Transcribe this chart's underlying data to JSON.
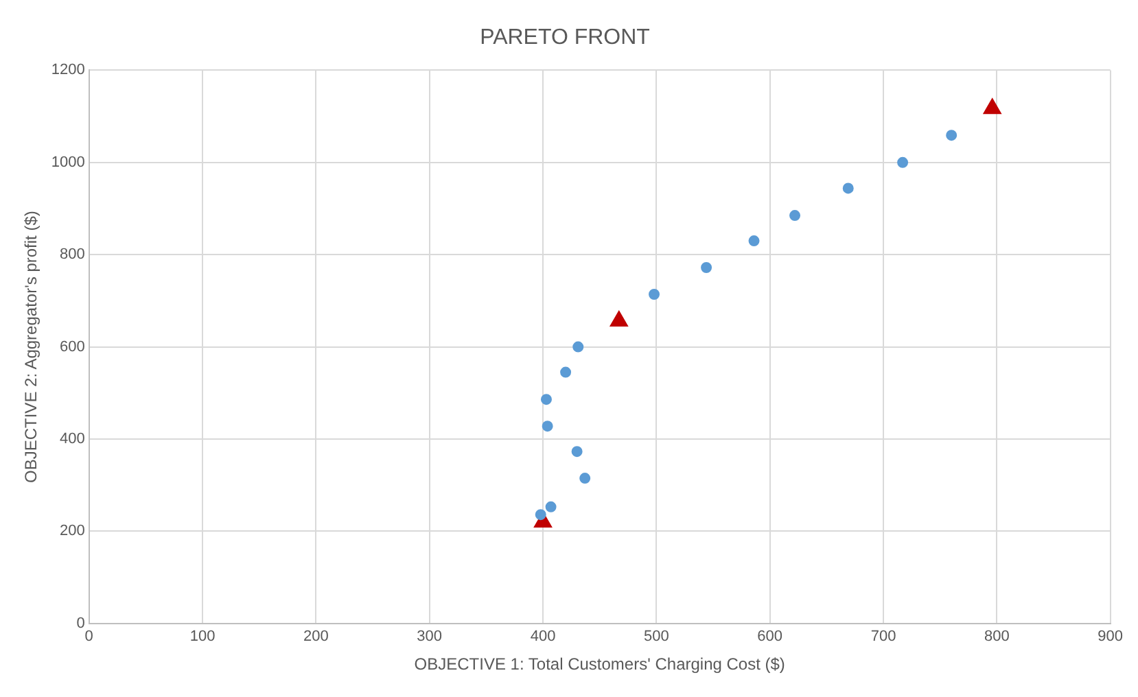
{
  "chart_data": {
    "type": "scatter",
    "title": "PARETO FRONT",
    "xlabel": "OBJECTIVE 1: Total Customers' Charging Cost ($)",
    "ylabel": "OBJECTIVE 2: Aggregator's profit ($)",
    "xlim": [
      0,
      900
    ],
    "xticks": [
      0,
      100,
      200,
      300,
      400,
      500,
      600,
      700,
      800,
      900
    ],
    "ylim": [
      0,
      1200
    ],
    "yticks": [
      0,
      200,
      400,
      600,
      800,
      1000,
      1200
    ],
    "grid": true,
    "legend": false,
    "series": [
      {
        "color": "#5b9bd5",
        "marker": "circle",
        "x": [
          398,
          407,
          437,
          430,
          404,
          403,
          420,
          431,
          498,
          544,
          586,
          622,
          669,
          717,
          760
        ],
        "values": [
          236,
          253,
          315,
          373,
          428,
          486,
          545,
          600,
          714,
          772,
          830,
          885,
          944,
          1000,
          1059
        ]
      },
      {
        "color": "#c00000",
        "marker": "triangle",
        "x": [
          400,
          467,
          796
        ],
        "values": [
          220,
          656,
          1117
        ]
      }
    ]
  }
}
